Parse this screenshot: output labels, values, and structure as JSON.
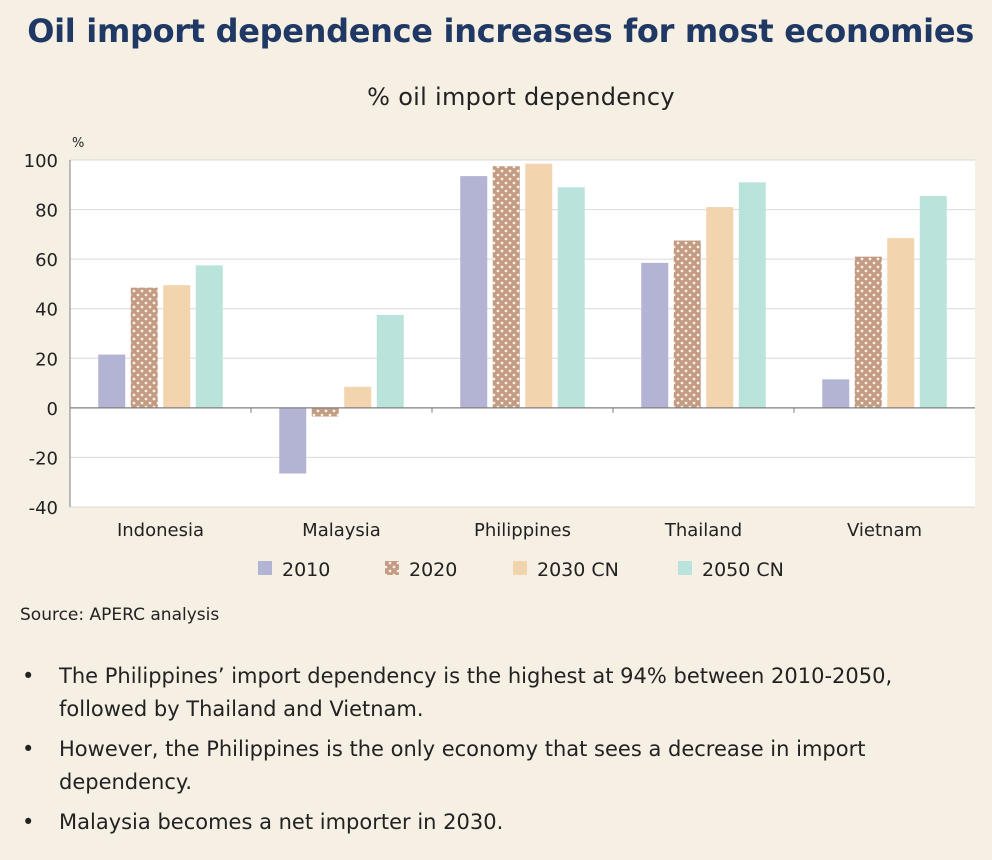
{
  "header": {
    "title": "Oil import dependence increases for most economies",
    "subtitle": "% oil import dependency"
  },
  "source": "Source:  APERC analysis",
  "bullets": [
    "The Philippines’ import dependency is the highest at 94% between 2010-2050, followed by Thailand and Vietnam.",
    "However, the Philippines is the only economy that sees a decrease in import dependency.",
    "Malaysia becomes a net importer in 2030."
  ],
  "bullet_glyph": "•",
  "colors": {
    "s2010": "#b3b3d4",
    "s2020": "#c39a82",
    "s2030": "#f2d4ae",
    "s2050": "#b9e3db",
    "title": "#1f3864"
  },
  "chart_data": {
    "type": "bar",
    "title": "% oil import dependency",
    "ylabel": "%",
    "xlabel": "",
    "ylim": [
      -40,
      100
    ],
    "yticks": [
      100,
      80,
      60,
      40,
      20,
      0,
      -20,
      -40
    ],
    "grid": true,
    "legend_position": "bottom",
    "categories": [
      "Indonesia",
      "Malaysia",
      "Philippines",
      "Thailand",
      "Vietnam"
    ],
    "series": [
      {
        "name": "2010",
        "values": [
          21.5,
          -26.5,
          93.5,
          58.5,
          11.5
        ],
        "pattern": "solid"
      },
      {
        "name": "2020",
        "values": [
          48.5,
          -3.5,
          97.5,
          67.5,
          61
        ],
        "pattern": "dots"
      },
      {
        "name": "2030 CN",
        "values": [
          49.5,
          8.5,
          98.5,
          81,
          68.5
        ],
        "pattern": "solid"
      },
      {
        "name": "2050 CN",
        "values": [
          57.5,
          37.5,
          89,
          91,
          85.5
        ],
        "pattern": "solid"
      }
    ]
  }
}
